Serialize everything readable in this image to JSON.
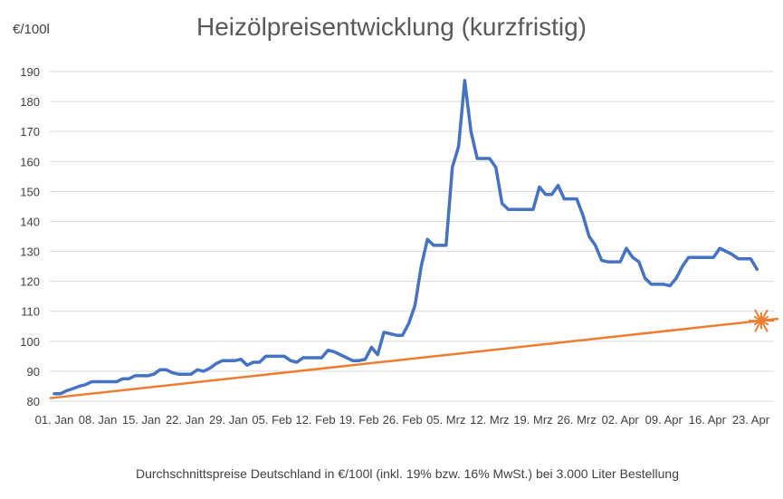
{
  "chart_data": {
    "type": "line",
    "title": "Heizölpreisentwicklung (kurzfristig)",
    "ylabel": "€/100l",
    "footnote": "Durchschnittspreise Deutschland in €/100l (inkl. 19% bzw. 16%  MwSt.) bei 3.000 Liter Bestellung",
    "ylim": [
      80,
      190
    ],
    "yticks": [
      80,
      90,
      100,
      110,
      120,
      130,
      140,
      150,
      160,
      170,
      180,
      190
    ],
    "grid": true,
    "legend": "none",
    "x_tick_labels": [
      "01. Jan",
      "08. Jan",
      "15. Jan",
      "22. Jan",
      "29. Jan",
      "05. Feb",
      "12. Feb",
      "19. Feb",
      "26. Feb",
      "05. Mrz",
      "12. Mrz",
      "19. Mrz",
      "26. Mrz",
      "02. Apr",
      "09. Apr",
      "16. Apr",
      "23. Apr"
    ],
    "series": [
      {
        "color": "#4472C4",
        "values": [
          82.5,
          82.5,
          83.5,
          84.2,
          85.0,
          85.5,
          86.5,
          86.5,
          86.5,
          86.5,
          86.5,
          87.5,
          87.5,
          88.5,
          88.5,
          88.5,
          89.0,
          90.5,
          90.5,
          89.5,
          89.0,
          89.0,
          89.0,
          90.5,
          90.0,
          91.0,
          92.5,
          93.5,
          93.5,
          93.5,
          94.0,
          92.0,
          93.0,
          93.0,
          95.0,
          95.0,
          95.0,
          95.0,
          93.5,
          93.0,
          94.5,
          94.5,
          94.5,
          94.5,
          97.0,
          96.5,
          95.5,
          94.5,
          93.5,
          93.5,
          94.0,
          98.0,
          95.5,
          103.0,
          102.5,
          102.0,
          102.0,
          106.0,
          112.0,
          125.0,
          134.0,
          132.0,
          132.0,
          132.0,
          158.0,
          165.0,
          187.0,
          170.0,
          161.0,
          161.0,
          161.0,
          158.0,
          146.0,
          144.0,
          144.0,
          144.0,
          144.0,
          144.0,
          151.5,
          149.0,
          149.0,
          152.0,
          147.5,
          147.5,
          147.5,
          142.0,
          135.0,
          132.0,
          127.0,
          126.5,
          126.5,
          126.5,
          131.0,
          128.0,
          126.5,
          121.0,
          119.0,
          119.0,
          119.0,
          118.5,
          121.0,
          125.0,
          128.0,
          128.0,
          128.0,
          128.0,
          128.0,
          131.0,
          130.0,
          129.0,
          127.5,
          127.5,
          127.5,
          124.0
        ]
      },
      {
        "color": "#ED7D31",
        "type": "trendline",
        "values": [
          81.0,
          107.5
        ]
      }
    ]
  }
}
